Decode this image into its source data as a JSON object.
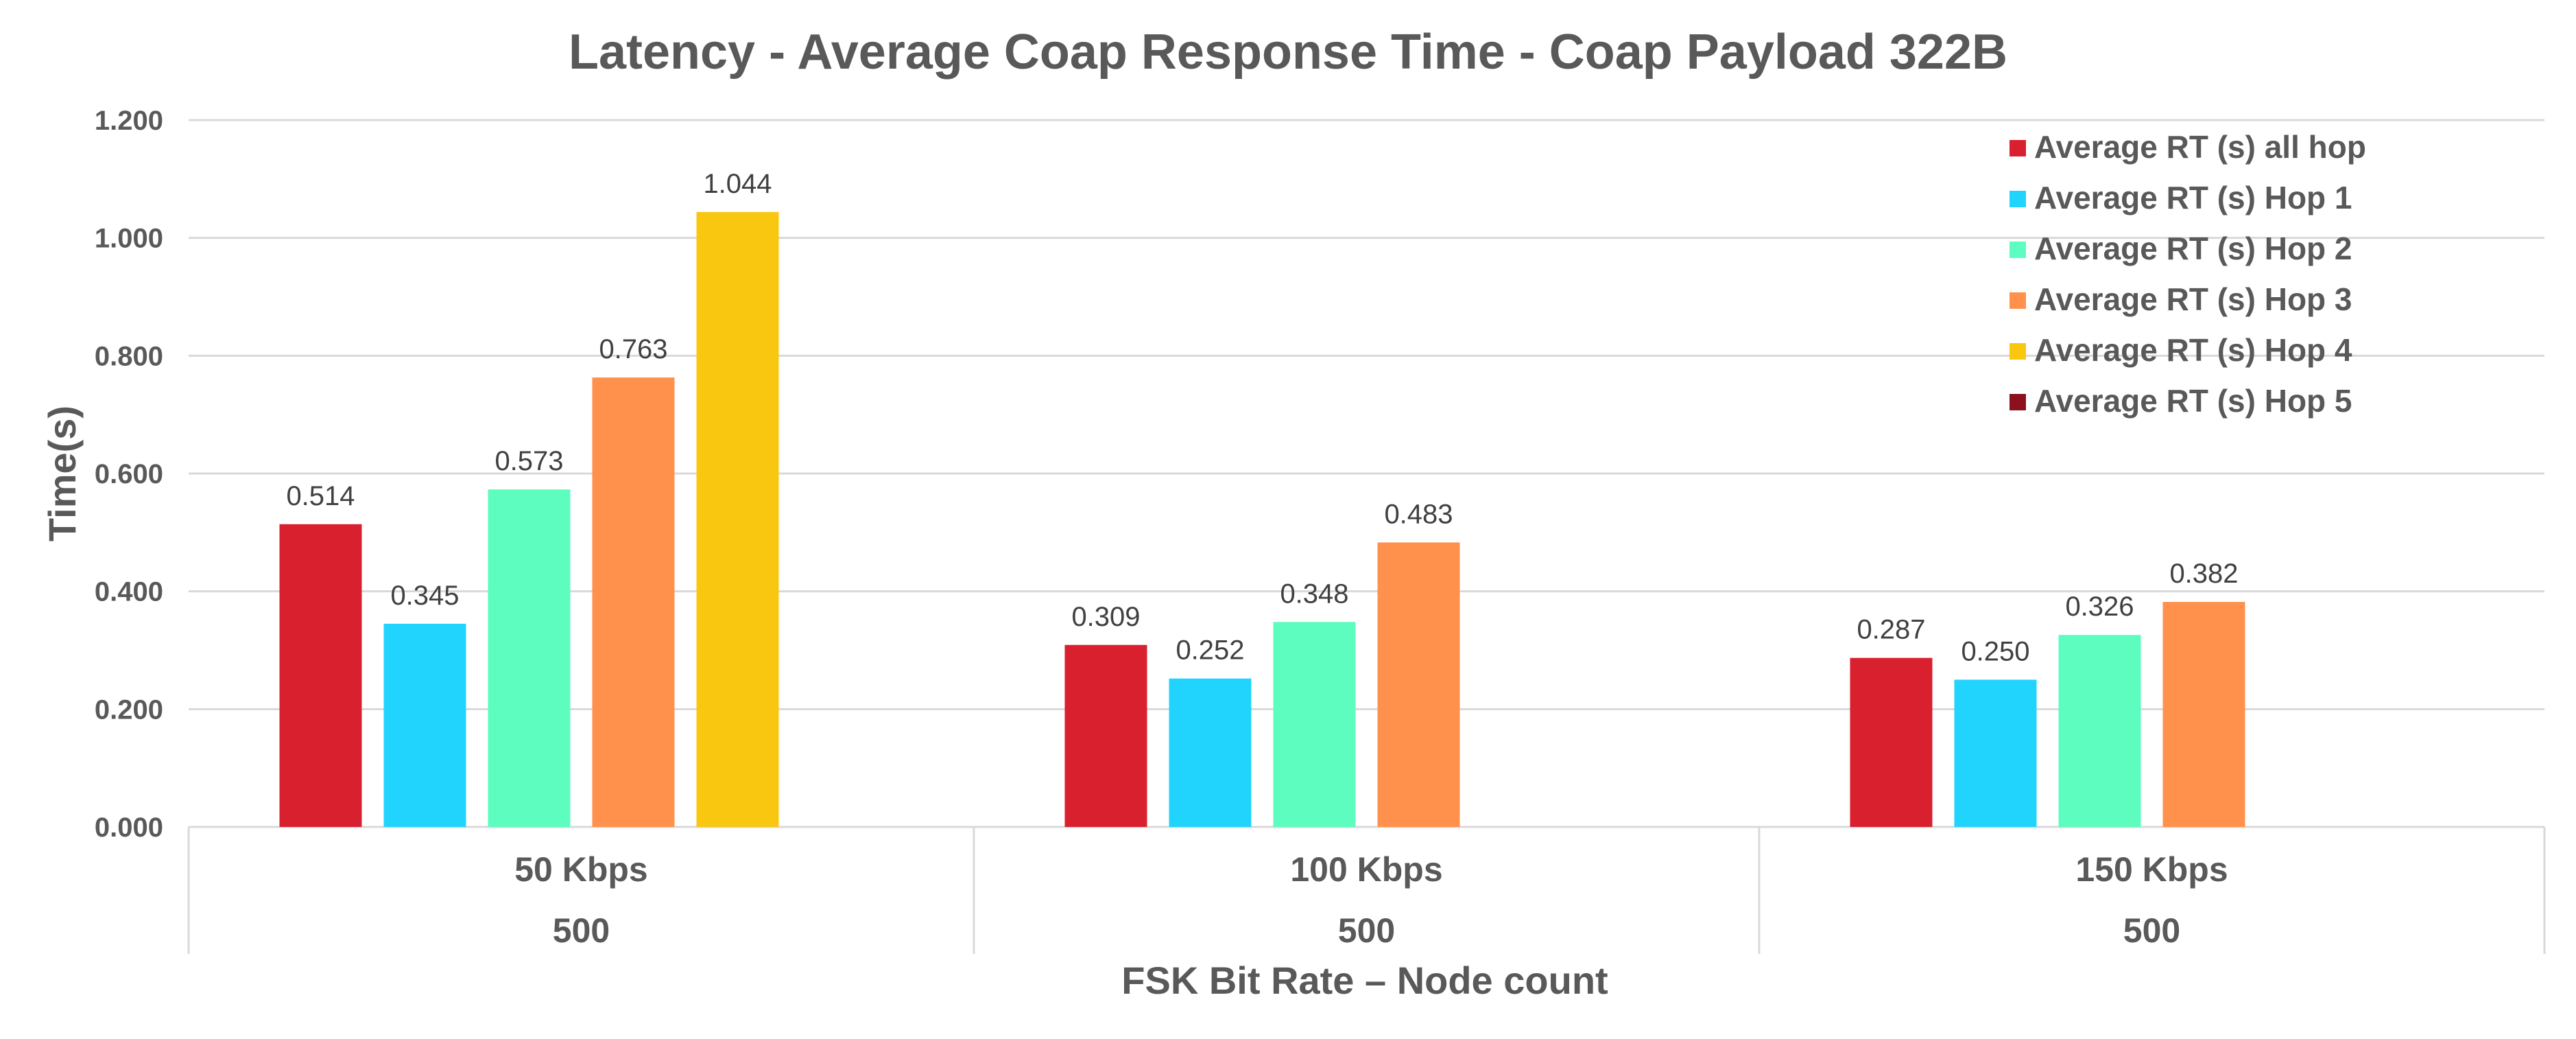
{
  "chart_data": {
    "type": "bar",
    "title": "Latency - Average Coap Response Time - Coap Payload 322B",
    "xlabel": "FSK Bit Rate – Node count",
    "ylabel": "Time(s)",
    "ylim": [
      0,
      1.2
    ],
    "yticks": [
      "0.000",
      "0.200",
      "0.400",
      "0.600",
      "0.800",
      "1.000",
      "1.200"
    ],
    "grid": true,
    "legend_position": "top-right",
    "categories": [
      "50 Kbps",
      "100 Kbps",
      "150 Kbps"
    ],
    "subcategories": [
      "500",
      "500",
      "500"
    ],
    "series": [
      {
        "name": "Average RT (s) all hop",
        "color": "#D9202E",
        "values": [
          0.514,
          0.309,
          0.287
        ],
        "labels": [
          "0.514",
          "0.309",
          "0.287"
        ]
      },
      {
        "name": "Average RT (s) Hop 1",
        "color": "#21D4FD",
        "values": [
          0.345,
          0.252,
          0.25
        ],
        "labels": [
          "0.345",
          "0.252",
          "0.250"
        ]
      },
      {
        "name": "Average RT (s) Hop 2",
        "color": "#5CFDBE",
        "values": [
          0.573,
          0.348,
          0.326
        ],
        "labels": [
          "0.573",
          "0.348",
          "0.326"
        ]
      },
      {
        "name": "Average RT (s) Hop 3",
        "color": "#FF914D",
        "values": [
          0.763,
          0.483,
          0.382
        ],
        "labels": [
          "0.763",
          "0.483",
          "0.382"
        ]
      },
      {
        "name": "Average RT (s) Hop 4",
        "color": "#F9C710",
        "values": [
          1.044,
          null,
          null
        ],
        "labels": [
          "1.044",
          "",
          ""
        ]
      },
      {
        "name": "Average RT (s) Hop 5",
        "color": "#8B1020",
        "values": [
          null,
          null,
          null
        ],
        "labels": [
          "",
          "",
          ""
        ]
      }
    ]
  }
}
